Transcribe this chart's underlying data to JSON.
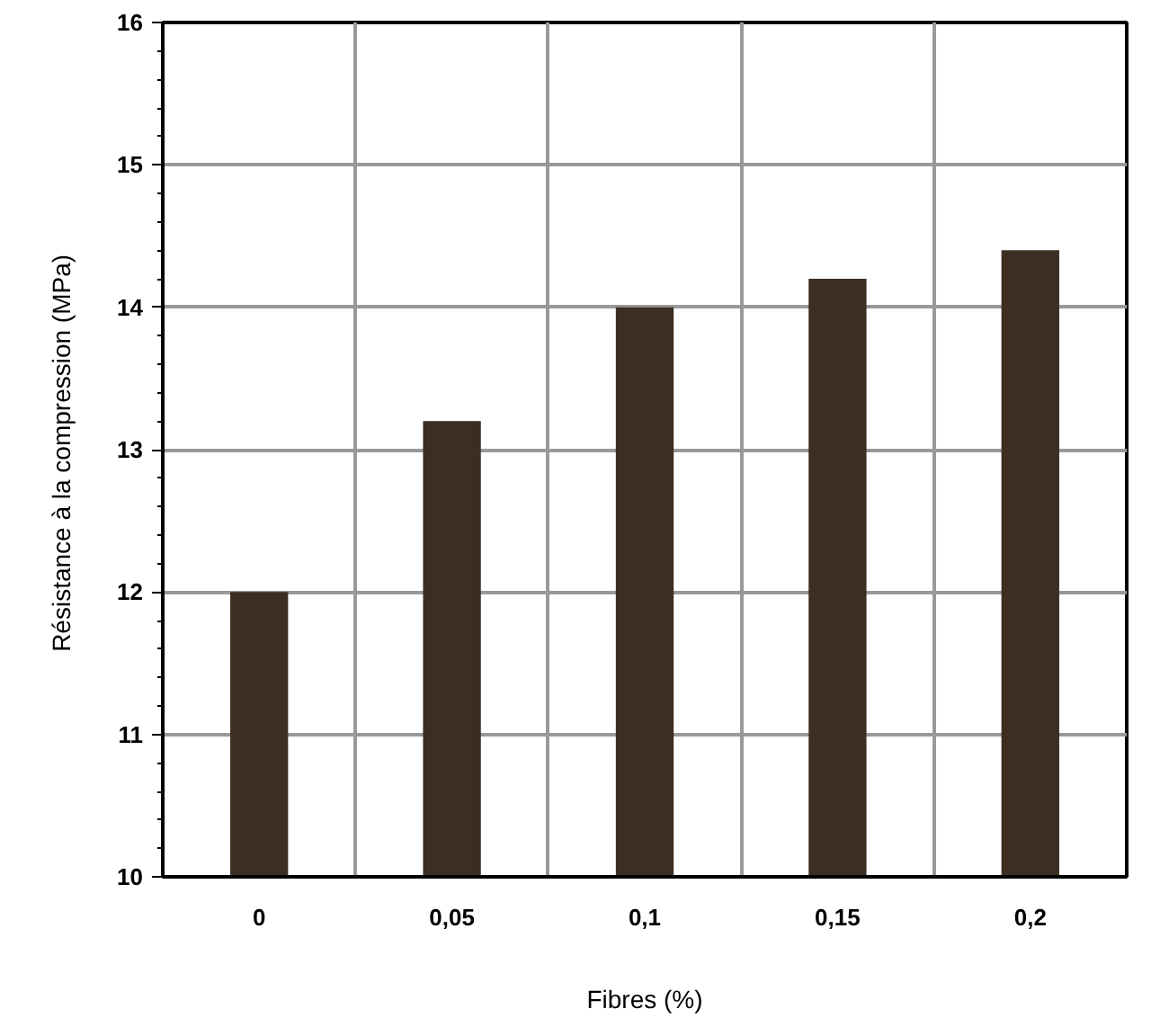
{
  "chart_data": {
    "type": "bar",
    "xlabel": "Fibres (%)",
    "ylabel": "Résistance à la compression  (MPa)",
    "categories": [
      "0",
      "0,05",
      "0,1",
      "0,15",
      "0,2"
    ],
    "values": [
      12,
      13.2,
      14,
      14.2,
      14.4
    ],
    "color": "#3d2e22",
    "ylim": [
      10,
      16
    ],
    "yticks": [
      10,
      11,
      12,
      13,
      14,
      15,
      16
    ],
    "grid": true
  }
}
